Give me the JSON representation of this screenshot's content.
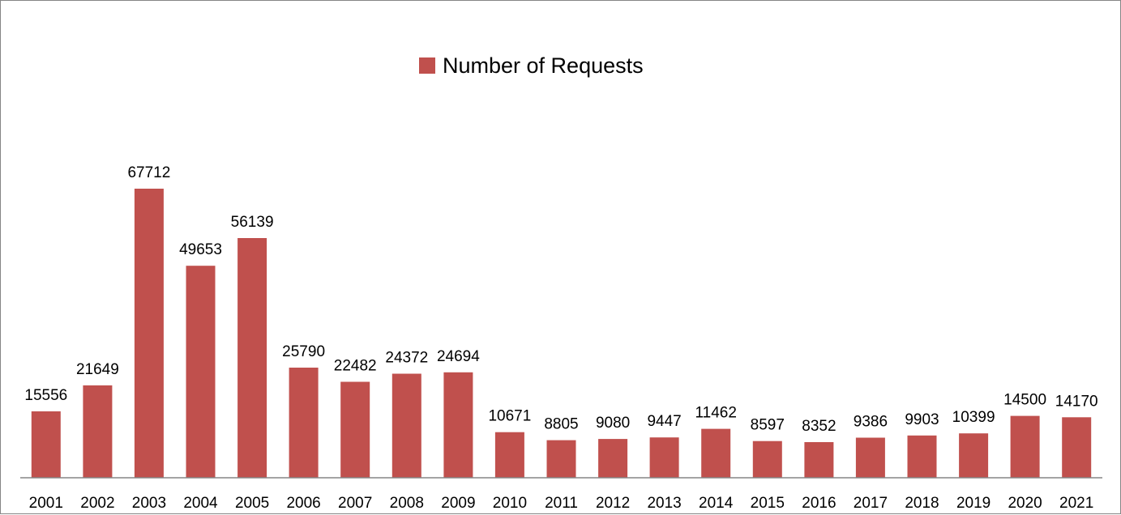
{
  "chart_data": {
    "type": "bar",
    "title": "",
    "xlabel": "",
    "ylabel": "",
    "categories": [
      "2001",
      "2002",
      "2003",
      "2004",
      "2005",
      "2006",
      "2007",
      "2008",
      "2009",
      "2010",
      "2011",
      "2012",
      "2013",
      "2014",
      "2015",
      "2016",
      "2017",
      "2018",
      "2019",
      "2020",
      "2021"
    ],
    "series": [
      {
        "name": "Number of Requests",
        "color": "#C0504D",
        "values": [
          15556,
          21649,
          67712,
          49653,
          56139,
          25790,
          22482,
          24372,
          24694,
          10671,
          8805,
          9080,
          9447,
          11462,
          8597,
          8352,
          9386,
          9903,
          10399,
          14500,
          14170
        ]
      }
    ],
    "ylim": [
      0,
      80000
    ],
    "grid": false,
    "legend": "top-center",
    "data_labels": true
  }
}
